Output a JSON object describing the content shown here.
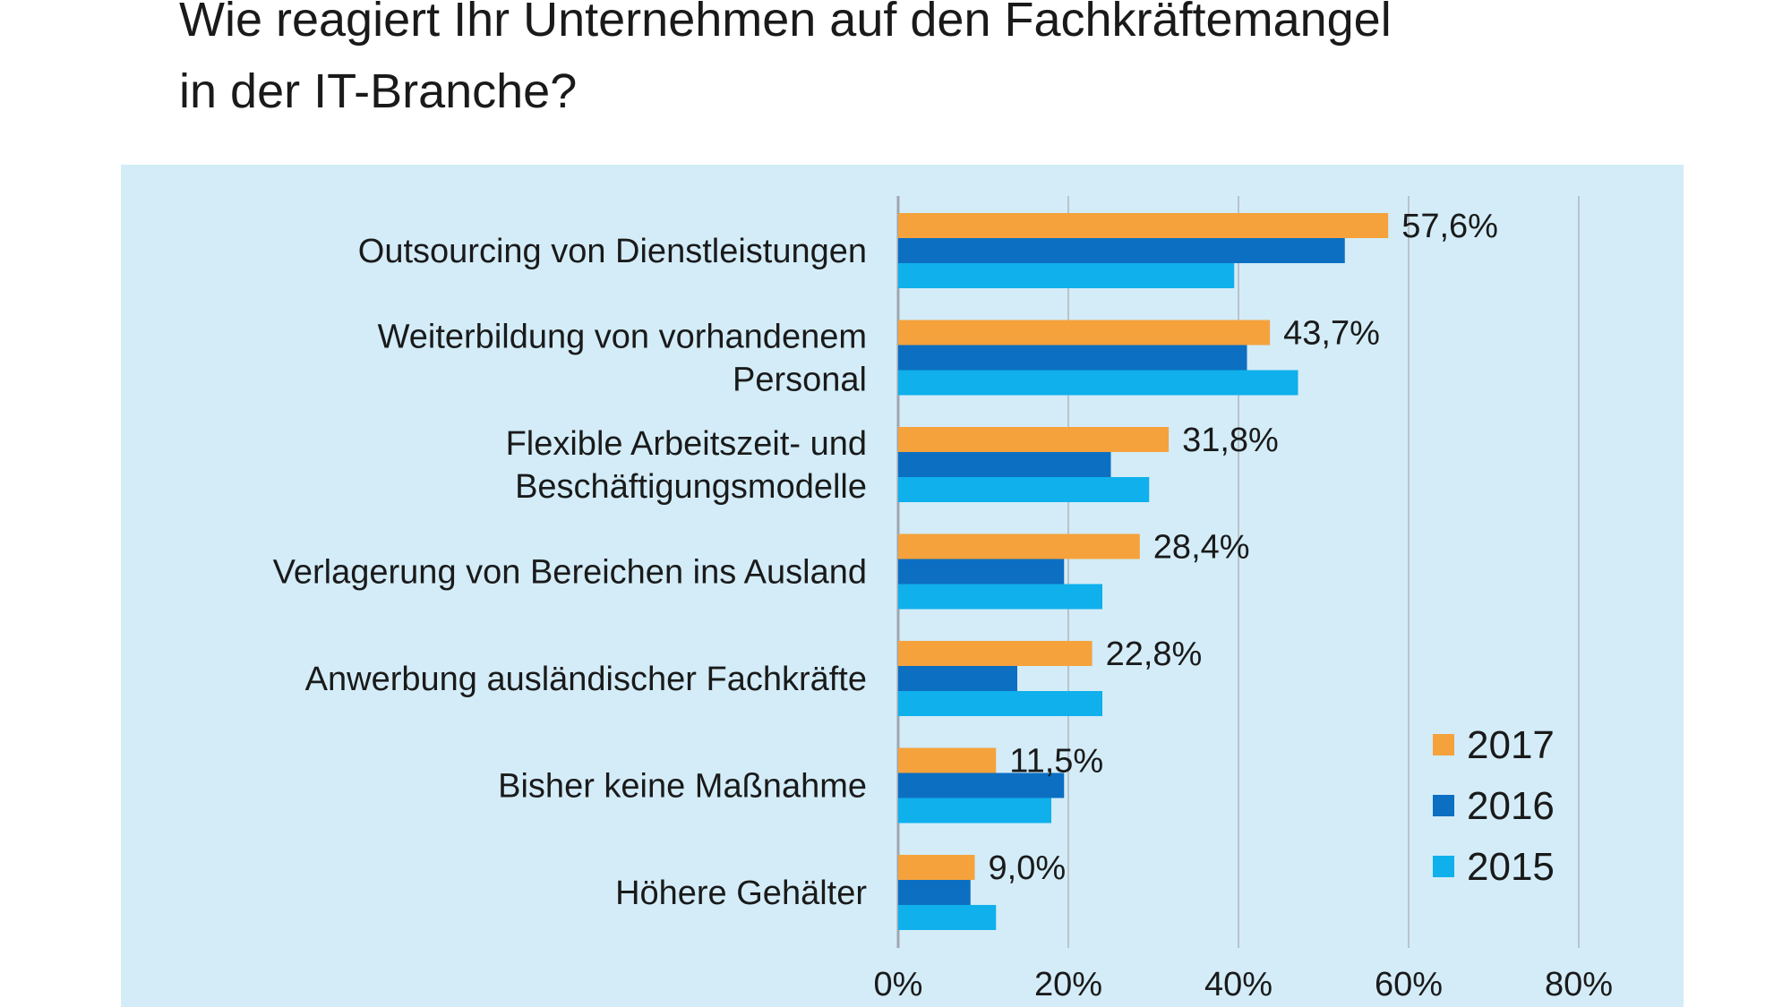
{
  "colors": {
    "panel": "#d3ecf8",
    "grid": "#b9c3cb",
    "axis": "#9ea8b0",
    "series": [
      "#f5a23c",
      "#0c6fc2",
      "#0fb0ec"
    ]
  },
  "chart_data": {
    "type": "bar",
    "orientation": "horizontal",
    "title_lines": [
      "Wie reagiert Ihr Unternehmen auf den Fachkräftemangel",
      "in der IT-Branche?"
    ],
    "categories": [
      [
        "Outsourcing von Dienstleistungen"
      ],
      [
        "Weiterbildung von vorhandenem",
        "Personal"
      ],
      [
        "Flexible Arbeitszeit- und",
        "Beschäftigungsmodelle"
      ],
      [
        "Verlagerung von Bereichen ins Ausland"
      ],
      [
        "Anwerbung ausländischer Fachkräfte"
      ],
      [
        "Bisher keine Maßnahme"
      ],
      [
        "Höhere Gehälter"
      ]
    ],
    "series": [
      {
        "name": "2017",
        "values": [
          57.6,
          43.7,
          31.8,
          28.4,
          22.8,
          11.5,
          9.0
        ],
        "labels": [
          "57,6%",
          "43,7%",
          "31,8%",
          "28,4%",
          "22,8%",
          "11,5%",
          "9,0%"
        ]
      },
      {
        "name": "2016",
        "values": [
          52.5,
          41.0,
          25.0,
          19.5,
          14.0,
          19.5,
          8.5
        ]
      },
      {
        "name": "2015",
        "values": [
          39.5,
          47.0,
          29.5,
          24.0,
          24.0,
          18.0,
          11.5
        ]
      }
    ],
    "xlim": [
      0,
      80
    ],
    "xticks": [
      0,
      20,
      40,
      60,
      80
    ],
    "xtick_labels": [
      "0%",
      "20%",
      "40%",
      "60%",
      "80%"
    ],
    "grid": true,
    "legend": {
      "position": "bottom-right",
      "order": [
        "2017",
        "2016",
        "2015"
      ]
    }
  }
}
